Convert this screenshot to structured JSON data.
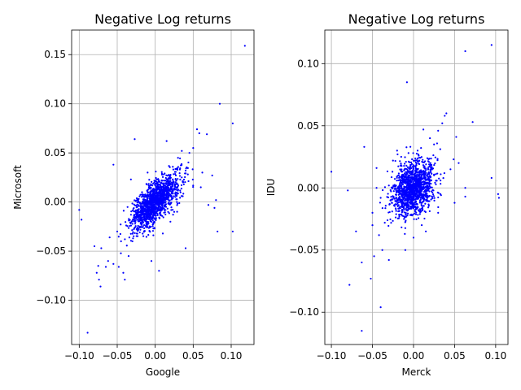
{
  "chart_data": [
    {
      "type": "scatter",
      "title": "Negative Log returns",
      "xlabel": "Google",
      "ylabel": "Microsoft",
      "xlim": [
        -0.11,
        0.13
      ],
      "ylim": [
        -0.145,
        0.175
      ],
      "xticks": [
        -0.1,
        -0.05,
        0.0,
        0.05,
        0.1
      ],
      "xtick_labels": [
        "−0.10",
        "−0.05",
        "0.00",
        "0.05",
        "0.10"
      ],
      "yticks": [
        -0.1,
        -0.05,
        0.0,
        0.05,
        0.1,
        0.15
      ],
      "ytick_labels": [
        "−0.10",
        "−0.05",
        "0.00",
        "0.05",
        "0.10",
        "0.15"
      ],
      "grid": true,
      "color": "#0000ff",
      "cluster": {
        "n": 1400,
        "sx": 0.016,
        "sy": 0.014,
        "rho": 0.7,
        "seed": 7
      },
      "points": [
        [
          -0.089,
          -0.133
        ],
        [
          0.118,
          0.159
        ],
        [
          0.102,
          0.08
        ],
        [
          0.085,
          0.1
        ],
        [
          0.102,
          -0.03
        ],
        [
          -0.1,
          -0.008
        ],
        [
          -0.097,
          -0.018
        ],
        [
          -0.08,
          -0.045
        ],
        [
          -0.071,
          -0.047
        ],
        [
          -0.075,
          -0.065
        ],
        [
          -0.077,
          -0.072
        ],
        [
          -0.074,
          -0.079
        ],
        [
          -0.072,
          -0.086
        ],
        [
          -0.065,
          -0.066
        ],
        [
          -0.062,
          -0.06
        ],
        [
          -0.055,
          -0.063
        ],
        [
          -0.048,
          -0.066
        ],
        [
          -0.042,
          -0.072
        ],
        [
          -0.04,
          -0.079
        ],
        [
          -0.055,
          0.038
        ],
        [
          -0.032,
          0.023
        ],
        [
          -0.027,
          0.064
        ],
        [
          0.015,
          0.062
        ],
        [
          0.04,
          -0.047
        ],
        [
          0.005,
          -0.07
        ],
        [
          -0.005,
          -0.06
        ],
        [
          0.055,
          0.074
        ],
        [
          0.058,
          0.07
        ],
        [
          0.068,
          0.069
        ],
        [
          0.075,
          0.027
        ],
        [
          0.08,
          0.002
        ],
        [
          0.078,
          -0.006
        ],
        [
          0.062,
          0.03
        ],
        [
          0.05,
          0.055
        ],
        [
          0.045,
          0.05
        ],
        [
          0.035,
          0.052
        ],
        [
          0.03,
          0.045
        ],
        [
          -0.05,
          -0.03
        ],
        [
          -0.045,
          -0.04
        ],
        [
          -0.06,
          -0.036
        ],
        [
          0.02,
          -0.02
        ],
        [
          0.01,
          -0.032
        ],
        [
          -0.01,
          0.03
        ],
        [
          0.025,
          -0.01
        ],
        [
          0.06,
          0.015
        ],
        [
          0.07,
          -0.003
        ],
        [
          0.082,
          -0.03
        ],
        [
          -0.035,
          -0.055
        ],
        [
          -0.03,
          -0.04
        ],
        [
          0.04,
          0.032
        ]
      ]
    },
    {
      "type": "scatter",
      "title": "Negative Log returns",
      "xlabel": "Merck",
      "ylabel": "IDU",
      "xlim": [
        -0.108,
        0.115
      ],
      "ylim": [
        -0.126,
        0.127
      ],
      "xticks": [
        -0.1,
        -0.05,
        0.0,
        0.05,
        0.1
      ],
      "xtick_labels": [
        "−0.10",
        "−0.05",
        "0.00",
        "0.05",
        "0.10"
      ],
      "yticks": [
        -0.1,
        -0.05,
        0.0,
        0.05,
        0.1
      ],
      "ytick_labels": [
        "−0.10",
        "−0.05",
        "0.00",
        "0.05",
        "0.10"
      ],
      "grid": true,
      "color": "#0000ff",
      "cluster": {
        "n": 1400,
        "sx": 0.013,
        "sy": 0.011,
        "rho": 0.35,
        "seed": 13
      },
      "points": [
        [
          0.095,
          0.115
        ],
        [
          0.063,
          0.11
        ],
        [
          0.072,
          0.053
        ],
        [
          -0.008,
          0.085
        ],
        [
          -0.1,
          0.013
        ],
        [
          -0.08,
          -0.002
        ],
        [
          -0.078,
          -0.078
        ],
        [
          -0.07,
          -0.035
        ],
        [
          -0.063,
          -0.06
        ],
        [
          -0.063,
          -0.115
        ],
        [
          -0.06,
          0.033
        ],
        [
          -0.052,
          -0.073
        ],
        [
          -0.048,
          -0.055
        ],
        [
          -0.04,
          -0.096
        ],
        [
          -0.038,
          -0.05
        ],
        [
          -0.03,
          -0.058
        ],
        [
          0.095,
          0.008
        ],
        [
          0.103,
          -0.005
        ],
        [
          0.104,
          -0.008
        ],
        [
          0.063,
          0.0
        ],
        [
          0.063,
          -0.007
        ],
        [
          0.052,
          0.041
        ],
        [
          0.04,
          0.06
        ],
        [
          0.038,
          0.058
        ],
        [
          0.035,
          0.052
        ],
        [
          0.03,
          0.046
        ],
        [
          0.012,
          0.047
        ],
        [
          0.02,
          0.04
        ],
        [
          -0.02,
          0.03
        ],
        [
          -0.025,
          0.022
        ],
        [
          -0.045,
          0.0
        ],
        [
          -0.05,
          -0.02
        ],
        [
          -0.05,
          -0.03
        ],
        [
          -0.042,
          -0.038
        ],
        [
          -0.035,
          -0.028
        ],
        [
          -0.01,
          -0.05
        ],
        [
          0.0,
          -0.04
        ],
        [
          0.01,
          -0.03
        ],
        [
          0.015,
          -0.035
        ],
        [
          0.045,
          0.015
        ],
        [
          0.055,
          0.02
        ],
        [
          0.05,
          -0.012
        ],
        [
          -0.045,
          0.016
        ],
        [
          -0.04,
          -0.008
        ],
        [
          0.025,
          0.035
        ],
        [
          0.03,
          -0.02
        ],
        [
          -0.015,
          0.025
        ],
        [
          0.005,
          0.03
        ]
      ]
    }
  ]
}
